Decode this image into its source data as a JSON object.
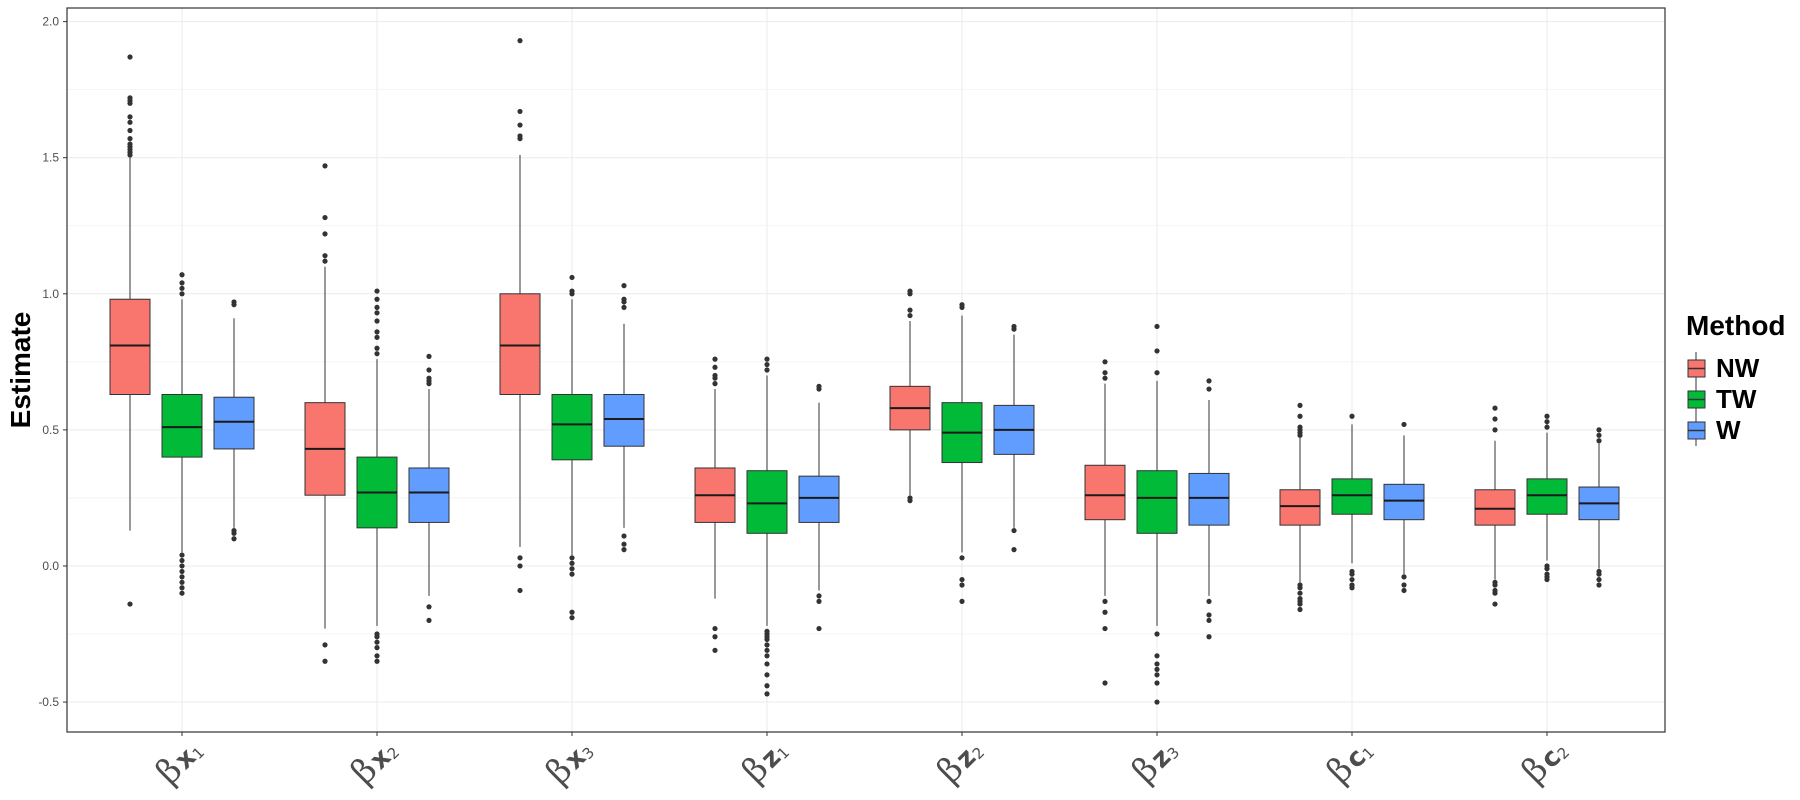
{
  "chart_data": {
    "type": "boxplot",
    "ylabel": "Estimate",
    "xlabel": "",
    "ylim": [
      -0.61,
      2.05
    ],
    "yticks": [
      -0.5,
      0.0,
      0.5,
      1.0,
      1.5,
      2.0
    ],
    "ytick_labels": [
      "-0.5",
      "0.0",
      "0.5",
      "1.0",
      "1.5",
      "2.0"
    ],
    "grid": true,
    "legend": {
      "title": "Method",
      "position": "right"
    },
    "categories": [
      {
        "greek": "β",
        "sym": "x",
        "sub": "1"
      },
      {
        "greek": "β",
        "sym": "x",
        "sub": "2"
      },
      {
        "greek": "β",
        "sym": "x",
        "sub": "3"
      },
      {
        "greek": "β",
        "sym": "z",
        "sub": "1"
      },
      {
        "greek": "β",
        "sym": "z",
        "sub": "2"
      },
      {
        "greek": "β",
        "sym": "z",
        "sub": "3"
      },
      {
        "greek": "β",
        "sym": "c",
        "sub": "1"
      },
      {
        "greek": "β",
        "sym": "c",
        "sub": "2"
      }
    ],
    "series": [
      {
        "name": "NW",
        "color": "#F8766D",
        "boxes": [
          {
            "wlo": 0.13,
            "q1": 0.63,
            "med": 0.81,
            "q3": 0.98,
            "whi": 1.5,
            "outliers": [
              -0.14,
              1.51,
              1.52,
              1.53,
              1.54,
              1.55,
              1.57,
              1.6,
              1.63,
              1.65,
              1.7,
              1.71,
              1.72,
              1.87
            ]
          },
          {
            "wlo": -0.23,
            "q1": 0.26,
            "med": 0.43,
            "q3": 0.6,
            "whi": 1.1,
            "outliers": [
              -0.29,
              -0.35,
              1.12,
              1.14,
              1.22,
              1.28,
              1.47
            ]
          },
          {
            "wlo": 0.07,
            "q1": 0.63,
            "med": 0.81,
            "q3": 1.0,
            "whi": 1.51,
            "outliers": [
              0.03,
              0.0,
              -0.09,
              1.57,
              1.58,
              1.62,
              1.67,
              1.93
            ]
          },
          {
            "wlo": -0.12,
            "q1": 0.16,
            "med": 0.26,
            "q3": 0.36,
            "whi": 0.65,
            "outliers": [
              -0.23,
              -0.26,
              -0.31,
              0.67,
              0.69,
              0.7,
              0.73,
              0.76
            ]
          },
          {
            "wlo": 0.26,
            "q1": 0.5,
            "med": 0.58,
            "q3": 0.66,
            "whi": 0.9,
            "outliers": [
              0.25,
              0.24,
              0.92,
              0.94,
              1.0,
              1.01
            ]
          },
          {
            "wlo": -0.11,
            "q1": 0.17,
            "med": 0.26,
            "q3": 0.37,
            "whi": 0.67,
            "outliers": [
              -0.13,
              -0.17,
              -0.23,
              -0.43,
              0.69,
              0.71,
              0.75
            ]
          },
          {
            "wlo": -0.06,
            "q1": 0.15,
            "med": 0.22,
            "q3": 0.28,
            "whi": 0.47,
            "outliers": [
              -0.07,
              -0.08,
              -0.1,
              -0.12,
              -0.13,
              -0.14,
              -0.16,
              0.48,
              0.49,
              0.5,
              0.51,
              0.55,
              0.59
            ]
          },
          {
            "wlo": -0.05,
            "q1": 0.15,
            "med": 0.21,
            "q3": 0.28,
            "whi": 0.46,
            "outliers": [
              -0.06,
              -0.07,
              -0.09,
              -0.1,
              -0.14,
              0.5,
              0.54,
              0.58
            ]
          }
        ]
      },
      {
        "name": "TW",
        "color": "#00BA38",
        "boxes": [
          {
            "wlo": 0.05,
            "q1": 0.4,
            "med": 0.51,
            "q3": 0.63,
            "whi": 0.98,
            "outliers": [
              0.04,
              0.02,
              0.0,
              -0.02,
              -0.04,
              -0.06,
              -0.08,
              -0.1,
              1.0,
              1.02,
              1.04,
              1.07
            ]
          },
          {
            "wlo": -0.22,
            "q1": 0.14,
            "med": 0.27,
            "q3": 0.4,
            "whi": 0.76,
            "outliers": [
              -0.25,
              -0.26,
              -0.28,
              -0.3,
              -0.33,
              -0.35,
              0.78,
              0.8,
              0.84,
              0.86,
              0.9,
              0.93,
              0.95,
              0.98,
              1.01
            ]
          },
          {
            "wlo": 0.04,
            "q1": 0.39,
            "med": 0.52,
            "q3": 0.63,
            "whi": 0.98,
            "outliers": [
              0.03,
              0.01,
              -0.01,
              -0.03,
              -0.17,
              -0.19,
              1.0,
              1.01,
              1.06
            ]
          },
          {
            "wlo": -0.22,
            "q1": 0.12,
            "med": 0.23,
            "q3": 0.35,
            "whi": 0.7,
            "outliers": [
              -0.24,
              -0.25,
              -0.26,
              -0.27,
              -0.29,
              -0.31,
              -0.33,
              -0.36,
              -0.4,
              -0.44,
              -0.47,
              0.72,
              0.74,
              0.76
            ]
          },
          {
            "wlo": 0.05,
            "q1": 0.38,
            "med": 0.49,
            "q3": 0.6,
            "whi": 0.92,
            "outliers": [
              0.03,
              -0.05,
              -0.07,
              -0.13,
              0.95,
              0.96
            ]
          },
          {
            "wlo": -0.22,
            "q1": 0.12,
            "med": 0.25,
            "q3": 0.35,
            "whi": 0.68,
            "outliers": [
              -0.25,
              -0.33,
              -0.36,
              -0.38,
              -0.4,
              -0.43,
              -0.5,
              0.71,
              0.79,
              0.88
            ]
          },
          {
            "wlo": 0.01,
            "q1": 0.19,
            "med": 0.26,
            "q3": 0.32,
            "whi": 0.52,
            "outliers": [
              -0.02,
              -0.03,
              -0.05,
              -0.07,
              -0.08,
              0.55
            ]
          },
          {
            "wlo": 0.02,
            "q1": 0.19,
            "med": 0.26,
            "q3": 0.32,
            "whi": 0.49,
            "outliers": [
              0.0,
              -0.01,
              -0.03,
              -0.04,
              -0.05,
              0.51,
              0.53,
              0.55
            ]
          }
        ]
      },
      {
        "name": "W",
        "color": "#619CFF",
        "boxes": [
          {
            "wlo": 0.14,
            "q1": 0.43,
            "med": 0.53,
            "q3": 0.62,
            "whi": 0.91,
            "outliers": [
              0.13,
              0.12,
              0.1,
              0.96,
              0.97
            ]
          },
          {
            "wlo": -0.11,
            "q1": 0.16,
            "med": 0.27,
            "q3": 0.36,
            "whi": 0.65,
            "outliers": [
              -0.15,
              -0.2,
              0.67,
              0.68,
              0.69,
              0.72,
              0.77
            ]
          },
          {
            "wlo": 0.14,
            "q1": 0.44,
            "med": 0.54,
            "q3": 0.63,
            "whi": 0.89,
            "outliers": [
              0.11,
              0.08,
              0.06,
              0.95,
              0.97,
              0.98,
              1.03
            ]
          },
          {
            "wlo": -0.09,
            "q1": 0.16,
            "med": 0.25,
            "q3": 0.33,
            "whi": 0.6,
            "outliers": [
              -0.11,
              -0.13,
              -0.23,
              0.65,
              0.66
            ]
          },
          {
            "wlo": 0.14,
            "q1": 0.41,
            "med": 0.5,
            "q3": 0.59,
            "whi": 0.85,
            "outliers": [
              0.13,
              0.06,
              0.87,
              0.88
            ]
          },
          {
            "wlo": -0.11,
            "q1": 0.15,
            "med": 0.25,
            "q3": 0.34,
            "whi": 0.61,
            "outliers": [
              -0.13,
              -0.18,
              -0.2,
              -0.26,
              0.65,
              0.68
            ]
          },
          {
            "wlo": -0.03,
            "q1": 0.17,
            "med": 0.24,
            "q3": 0.3,
            "whi": 0.48,
            "outliers": [
              -0.04,
              -0.07,
              -0.09,
              0.52
            ]
          },
          {
            "wlo": -0.01,
            "q1": 0.17,
            "med": 0.23,
            "q3": 0.29,
            "whi": 0.45,
            "outliers": [
              -0.02,
              -0.03,
              -0.05,
              -0.07,
              0.46,
              0.48,
              0.5
            ]
          }
        ]
      }
    ]
  }
}
